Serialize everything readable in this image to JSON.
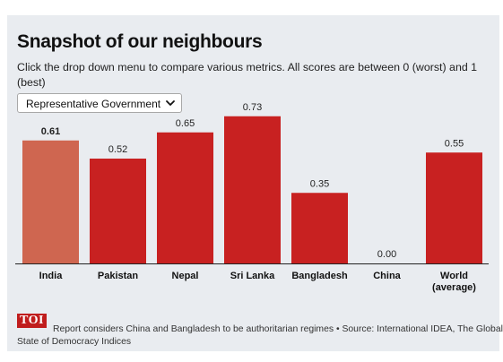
{
  "header": {
    "title": "Snapshot of our neighbours",
    "subtitle": "Click the drop down menu to compare various metrics. All scores are between 0 (worst) and 1 (best)"
  },
  "controls": {
    "metric_select_value": "Representative Government"
  },
  "chart_data": {
    "type": "bar",
    "categories": [
      "India",
      "Pakistan",
      "Nepal",
      "Sri Lanka",
      "Bangladesh",
      "China",
      "World\n(average)"
    ],
    "values": [
      0.61,
      0.52,
      0.65,
      0.73,
      0.35,
      0.0,
      0.55
    ],
    "value_labels": [
      "0.61",
      "0.52",
      "0.65",
      "0.73",
      "0.35",
      "0.00",
      "0.55"
    ],
    "highlight_category": "India",
    "ylim": [
      0,
      0.8
    ],
    "grid": false,
    "xlabel": "",
    "ylabel": ""
  },
  "colors": {
    "bar": "#c82121",
    "highlight_bar": "#cf6650",
    "background": "#e9ecf0",
    "logo": "#c01d1d"
  },
  "footer": {
    "logo_text": "TOI",
    "note_line1": "Report considers China and Bangladesh to be authoritarian regimes • Source: International IDEA, The Global",
    "note_line2": "State of Democracy Indices"
  }
}
